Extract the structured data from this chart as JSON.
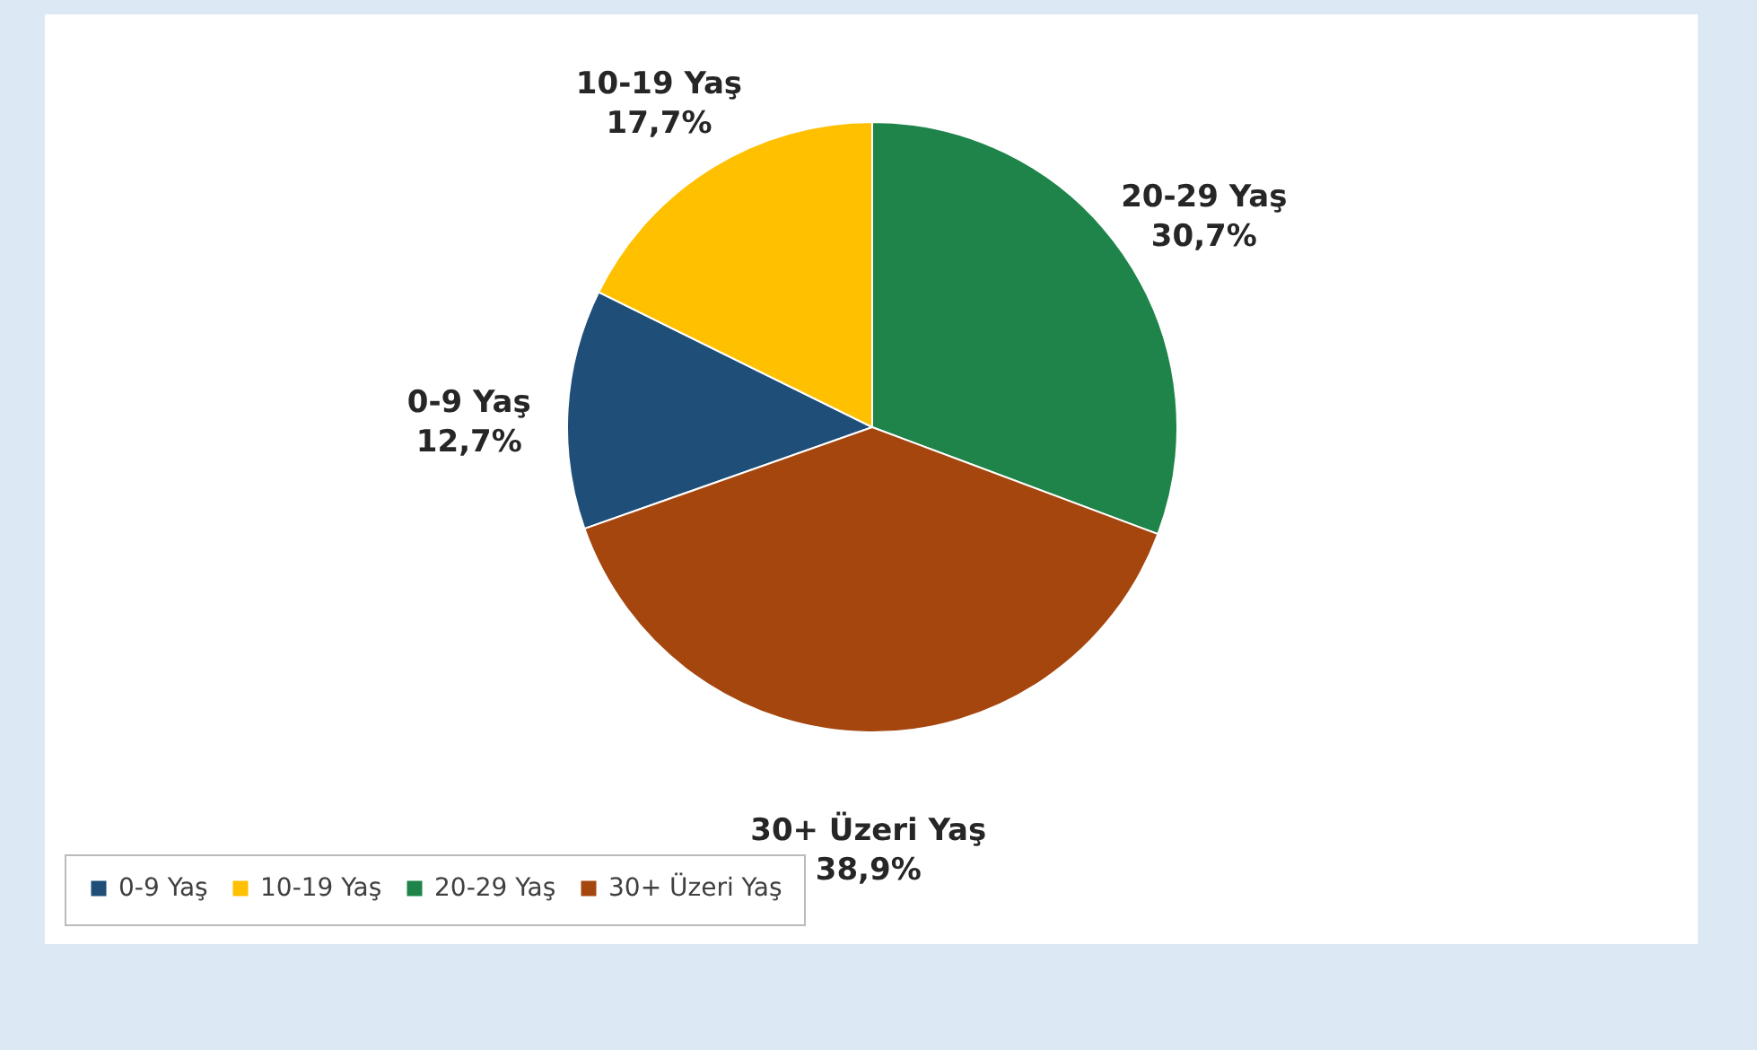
{
  "chart_data": {
    "type": "pie",
    "categories": [
      "0-9 Yaş",
      "10-19 Yaş",
      "20-29 Yaş",
      "30+ Üzeri Yaş"
    ],
    "values": [
      12.7,
      17.7,
      30.7,
      38.9
    ],
    "colors": [
      "#1f4e79",
      "#ffc000",
      "#1e8449",
      "#a5460f"
    ],
    "value_labels": [
      "12,7%",
      "17,7%",
      "30,7%",
      "38,9%"
    ],
    "legend": "bottom"
  }
}
